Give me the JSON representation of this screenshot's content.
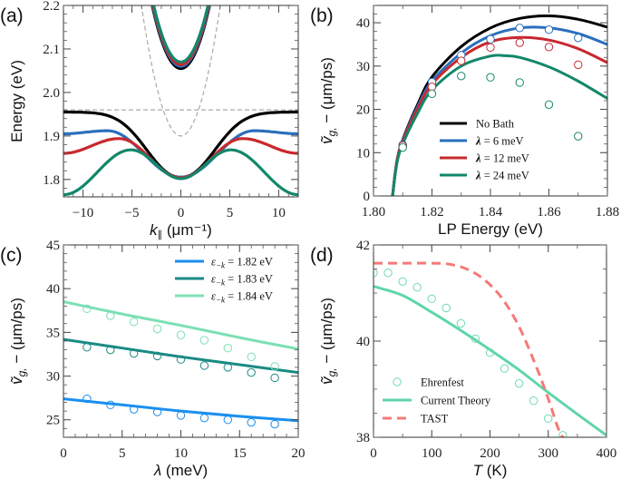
{
  "chart_data": [
    {
      "panel": "a",
      "panel_label": "(a)",
      "type": "line",
      "xlabel": "k∥ (μm⁻¹)",
      "ylabel": "Energy (eV)",
      "xlim": [
        -12,
        12
      ],
      "ylim": [
        1.76,
        2.2
      ],
      "xticks": [
        -10,
        -5,
        0,
        5,
        10
      ],
      "xtick_labels": [
        "−10",
        "−5",
        "0",
        "5",
        "10"
      ],
      "yticks": [
        1.8,
        1.9,
        2.0,
        2.1,
        2.2
      ],
      "ytick_labels": [
        "1.8",
        "1.9",
        "2.0",
        "2.1",
        "2.2"
      ],
      "reference_lines": [
        {
          "name": "exciton energy",
          "style": "dashed",
          "color": "#aaaaaa",
          "y": 1.96
        },
        {
          "name": "cavity photon dispersion",
          "style": "dashed",
          "color": "#aaaaaa",
          "min_energy": 1.9,
          "curvature": 0.0185
        }
      ],
      "series": [
        {
          "name": "No Bath",
          "color": "#000000",
          "lp_at_0": 1.805,
          "lp_at_edge": 1.955,
          "up_at_0": 2.055
        },
        {
          "name": "λ = 6 meV",
          "color": "#2a6fbd",
          "lp_at_0": 1.805,
          "lp_peak": 1.912,
          "lp_peak_k": 7.5,
          "lp_at_edge": 1.905,
          "up_at_0": 2.06
        },
        {
          "name": "λ = 12 meV",
          "color": "#c8282e",
          "lp_at_0": 1.804,
          "lp_peak": 1.894,
          "lp_peak_k": 6.3,
          "lp_at_edge": 1.86,
          "up_at_0": 2.064
        },
        {
          "name": "λ = 24 meV",
          "color": "#12876a",
          "lp_at_0": 1.802,
          "lp_peak": 1.868,
          "lp_peak_k": 5.1,
          "lp_at_edge": 1.765,
          "up_at_0": 2.07
        }
      ]
    },
    {
      "panel": "b",
      "panel_label": "(b)",
      "type": "line",
      "xlabel": "LP Energy (eV)",
      "ylabel": "ṽg,− (μm/ps)",
      "xlim": [
        1.8,
        1.88
      ],
      "ylim": [
        0,
        44
      ],
      "xticks": [
        1.8,
        1.82,
        1.84,
        1.86,
        1.88
      ],
      "xtick_labels": [
        "1.80",
        "1.82",
        "1.84",
        "1.86",
        "1.88"
      ],
      "yticks": [
        0,
        10,
        20,
        30,
        40
      ],
      "ytick_labels": [
        "0",
        "10",
        "20",
        "30",
        "40"
      ],
      "legend_position": "lower-center",
      "series": [
        {
          "name": "No Bath",
          "label_prefix": "",
          "label": "No Bath",
          "color": "#000000",
          "line": {
            "x": [
              1.8065,
              1.808,
              1.81,
              1.815,
              1.82,
              1.83,
              1.84,
              1.85,
              1.86,
              1.87,
              1.88
            ],
            "y": [
              0,
              8,
              13,
              21,
              27.5,
              34.5,
              38.8,
              41,
              41.6,
              40.8,
              39
            ]
          },
          "points": null
        },
        {
          "name": "λ = 6 meV",
          "label_prefix": "λ",
          "label": " = 6 meV",
          "color": "#2a6fbd",
          "line": {
            "x": [
              1.8065,
              1.808,
              1.81,
              1.815,
              1.82,
              1.83,
              1.84,
              1.85,
              1.86,
              1.87,
              1.88
            ],
            "y": [
              0,
              8,
              12.8,
              20.5,
              26.5,
              33,
              37,
              38.8,
              38.8,
              37.5,
              35
            ]
          },
          "points": {
            "x": [
              1.81,
              1.82,
              1.83,
              1.84,
              1.85,
              1.86,
              1.87
            ],
            "y": [
              11.8,
              26.3,
              32.5,
              36.2,
              38.8,
              38.4,
              36.5
            ]
          }
        },
        {
          "name": "λ = 12 meV",
          "label_prefix": "λ",
          "label": " = 12 meV",
          "color": "#c8282e",
          "line": {
            "x": [
              1.8065,
              1.808,
              1.81,
              1.815,
              1.82,
              1.83,
              1.84,
              1.85,
              1.86,
              1.87,
              1.88
            ],
            "y": [
              0,
              8,
              12.6,
              20,
              25.8,
              32,
              35.6,
              36.6,
              36,
              34,
              30.8
            ]
          },
          "points": {
            "x": [
              1.81,
              1.82,
              1.83,
              1.84,
              1.85,
              1.86,
              1.87
            ],
            "y": [
              11.6,
              25.2,
              31.2,
              34.3,
              35.4,
              34.4,
              30.3
            ]
          }
        },
        {
          "name": "λ = 24 meV",
          "label_prefix": "λ",
          "label": " = 24 meV",
          "color": "#12876a",
          "line": {
            "x": [
              1.8065,
              1.808,
              1.81,
              1.815,
              1.82,
              1.83,
              1.84,
              1.845,
              1.85,
              1.86,
              1.87,
              1.88
            ],
            "y": [
              0,
              7.5,
              12,
              19,
              24.5,
              30,
              32.3,
              32.4,
              32,
              29.8,
              26.5,
              22.5
            ]
          },
          "points": {
            "x": [
              1.81,
              1.82,
              1.83,
              1.84,
              1.85,
              1.86,
              1.87
            ],
            "y": [
              11.2,
              23.6,
              27.7,
              27.4,
              26.2,
              21.1,
              13.8
            ]
          }
        }
      ]
    },
    {
      "panel": "c",
      "panel_label": "(c)",
      "type": "line",
      "xlabel": "λ (meV)",
      "ylabel": "ṽg,− (μm/ps)",
      "xlim": [
        0,
        20
      ],
      "ylim": [
        23,
        45
      ],
      "xticks": [
        0,
        5,
        10,
        15,
        20
      ],
      "xtick_labels": [
        "0",
        "5",
        "10",
        "15",
        "20"
      ],
      "yticks": [
        25,
        30,
        35,
        40,
        45
      ],
      "ytick_labels": [
        "25",
        "30",
        "35",
        "40",
        "45"
      ],
      "legend_position": "top-right",
      "series": [
        {
          "name": "ε−k = 1.82 eV",
          "label_sym": "ε",
          "label_sub": "−k",
          "label_rest": " = 1.82 eV",
          "color": "#1a8ff0",
          "line": {
            "x": [
              0,
              5,
              10,
              15,
              20
            ],
            "y": [
              27.4,
              26.7,
              26.0,
              25.4,
              24.9
            ]
          },
          "points": {
            "x": [
              2,
              4,
              6,
              8,
              10,
              12,
              14,
              16,
              18
            ],
            "y": [
              27.4,
              26.7,
              26.2,
              25.9,
              25.5,
              25.2,
              25.0,
              24.7,
              24.5
            ]
          }
        },
        {
          "name": "ε−k = 1.83 eV",
          "label_sym": "ε",
          "label_sub": "−k",
          "label_rest": " = 1.83 eV",
          "color": "#1a8a84",
          "line": {
            "x": [
              0,
              5,
              10,
              15,
              20
            ],
            "y": [
              34.2,
              33.2,
              32.2,
              31.3,
              30.4
            ]
          },
          "points": {
            "x": [
              2,
              4,
              6,
              8,
              10,
              12,
              14,
              16,
              18
            ],
            "y": [
              33.3,
              33.0,
              32.6,
              32.3,
              31.9,
              31.2,
              31.0,
              30.4,
              29.8
            ]
          }
        },
        {
          "name": "ε−k = 1.84 eV",
          "label_sym": "ε",
          "label_sub": "−k",
          "label_rest": " = 1.84 eV",
          "color": "#7ce0b4",
          "line": {
            "x": [
              0,
              5,
              10,
              15,
              20
            ],
            "y": [
              38.5,
              37.1,
              35.8,
              34.4,
              33.1
            ]
          },
          "points": {
            "x": [
              2,
              4,
              6,
              8,
              10,
              12,
              14,
              16,
              18
            ],
            "y": [
              37.7,
              36.9,
              36.2,
              35.4,
              34.7,
              34.1,
              33.2,
              32.2,
              31.1
            ]
          }
        }
      ]
    },
    {
      "panel": "d",
      "panel_label": "(d)",
      "type": "line",
      "xlabel": "T (K)",
      "ylabel": "ṽg,− (μm/ps)",
      "xlim": [
        0,
        400
      ],
      "ylim": [
        38,
        42
      ],
      "xticks": [
        0,
        100,
        200,
        300,
        400
      ],
      "xtick_labels": [
        "0",
        "100",
        "200",
        "300",
        "400"
      ],
      "yticks": [
        38,
        40,
        42
      ],
      "ytick_labels": [
        "38",
        "40",
        "42"
      ],
      "legend_position": "lower-left",
      "series": [
        {
          "name": "Ehrenfest",
          "kind": "points",
          "color": "#6fd9b0",
          "x": [
            0,
            25,
            50,
            75,
            100,
            125,
            150,
            175,
            200,
            225,
            250,
            275,
            300,
            325
          ],
          "y": [
            41.42,
            41.42,
            41.24,
            41.12,
            40.88,
            40.69,
            40.37,
            40.05,
            39.76,
            39.43,
            39.12,
            38.76,
            38.39,
            38.04
          ]
        },
        {
          "name": "Current Theory",
          "kind": "line",
          "color": "#5fd6a8",
          "x": [
            0,
            50,
            100,
            150,
            200,
            250,
            300,
            350,
            400
          ],
          "y": [
            41.14,
            40.95,
            40.6,
            40.22,
            39.82,
            39.4,
            38.93,
            38.48,
            38.04
          ]
        },
        {
          "name": "TAST",
          "kind": "dashed",
          "color": "#f47a78",
          "x": [
            0,
            50,
            100,
            130,
            160,
            190,
            220,
            250,
            280,
            300,
            320,
            335
          ],
          "y": [
            41.62,
            41.62,
            41.62,
            41.6,
            41.5,
            41.28,
            40.9,
            40.3,
            39.45,
            38.8,
            38.1,
            37.9
          ]
        }
      ]
    }
  ]
}
